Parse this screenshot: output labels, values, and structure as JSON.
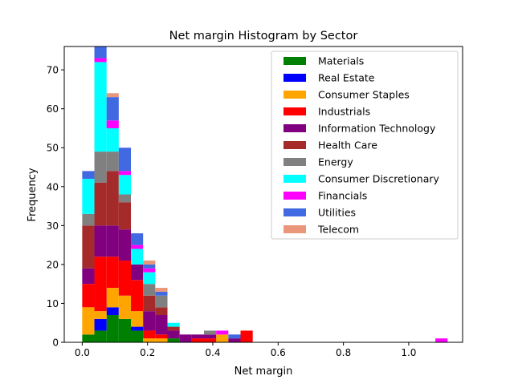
{
  "chart_data": {
    "type": "bar",
    "title": "Net margin Histogram by Sector",
    "xlabel": "Net margin",
    "ylabel": "Frequency",
    "xlim": [
      -0.055,
      1.165
    ],
    "ylim": [
      0,
      76
    ],
    "x_ticks": [
      {
        "value": 0.0,
        "label": "0.0"
      },
      {
        "value": 0.2,
        "label": "0.2"
      },
      {
        "value": 0.4,
        "label": "0.4"
      },
      {
        "value": 0.6,
        "label": "0.6"
      },
      {
        "value": 0.8,
        "label": "0.8"
      },
      {
        "value": 1.0,
        "label": "1.0"
      }
    ],
    "y_ticks": [
      {
        "value": 0,
        "label": "0"
      },
      {
        "value": 10,
        "label": "10"
      },
      {
        "value": 20,
        "label": "20"
      },
      {
        "value": 30,
        "label": "30"
      },
      {
        "value": 40,
        "label": "40"
      },
      {
        "value": 50,
        "label": "50"
      },
      {
        "value": 60,
        "label": "60"
      },
      {
        "value": 70,
        "label": "70"
      }
    ],
    "grid": false,
    "legend_position": "top-right",
    "stacked": true,
    "bin_width": 0.0373,
    "bin_starts": [
      0.0,
      0.0373,
      0.0746,
      0.1119,
      0.1492,
      0.1865,
      0.2238,
      0.2611,
      0.2984,
      0.3357,
      0.373,
      0.4103,
      0.4476,
      0.4849,
      1.0817
    ],
    "series": [
      {
        "name": "Materials",
        "color": "#008000",
        "values": [
          2,
          3,
          7,
          6,
          3,
          0,
          0,
          1,
          0,
          0,
          0,
          0,
          0,
          0,
          0
        ]
      },
      {
        "name": "Real Estate",
        "color": "#0000ff",
        "values": [
          0,
          3,
          2,
          0,
          1,
          0,
          0,
          0,
          0,
          0,
          0,
          0,
          0,
          0,
          0
        ]
      },
      {
        "name": "Consumer Staples",
        "color": "#ffa500",
        "values": [
          7,
          2,
          5,
          6,
          4,
          1,
          1,
          0,
          0,
          0,
          0,
          2,
          0,
          0,
          0
        ]
      },
      {
        "name": "Industrials",
        "color": "#ff0000",
        "values": [
          6,
          14,
          8,
          9,
          8,
          2,
          1,
          0,
          0,
          1,
          1,
          0,
          0,
          3,
          0
        ]
      },
      {
        "name": "Information Technology",
        "color": "#800080",
        "values": [
          4,
          8,
          8,
          8,
          4,
          5,
          5,
          2,
          2,
          1,
          1,
          0,
          1,
          0,
          0
        ]
      },
      {
        "name": "Health Care",
        "color": "#a52a2a",
        "values": [
          11,
          11,
          14,
          7,
          0,
          4,
          2,
          1,
          0,
          0,
          0,
          0,
          0,
          0,
          0
        ]
      },
      {
        "name": "Energy",
        "color": "#808080",
        "values": [
          3,
          8,
          5,
          2,
          0,
          3,
          3,
          0,
          0,
          0,
          1,
          0,
          0,
          0,
          0
        ]
      },
      {
        "name": "Consumer Discretionary",
        "color": "#00ffff",
        "values": [
          9,
          23,
          6,
          5,
          4,
          3,
          0,
          1,
          0,
          0,
          0,
          0,
          0,
          0,
          0
        ]
      },
      {
        "name": "Financials",
        "color": "#ff00ff",
        "values": [
          0,
          1,
          2,
          1,
          1,
          1,
          0,
          0,
          0,
          0,
          0,
          1,
          0,
          0,
          1
        ]
      },
      {
        "name": "Utilities",
        "color": "#4169e1",
        "values": [
          2,
          3,
          6,
          6,
          3,
          1,
          1,
          0,
          0,
          0,
          0,
          0,
          1,
          0,
          0
        ]
      },
      {
        "name": "Telecom",
        "color": "#e9967a",
        "values": [
          0,
          0,
          1,
          0,
          0,
          1,
          1,
          0,
          0,
          0,
          0,
          0,
          0,
          0,
          0
        ]
      }
    ]
  }
}
